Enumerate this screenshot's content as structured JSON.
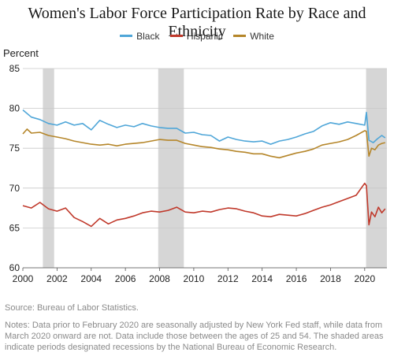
{
  "chart_data": {
    "type": "line",
    "title": "Women's Labor Force Participation Rate by Race and Ethnicity",
    "ylabel": "Percent",
    "xlabel": "",
    "xlim": [
      2000,
      2021.3
    ],
    "ylim": [
      60,
      85
    ],
    "x_ticks": [
      "2000",
      "2002",
      "2004",
      "2006",
      "2008",
      "2010",
      "2012",
      "2014",
      "2016",
      "2018",
      "2020"
    ],
    "y_ticks": [
      "60",
      "65",
      "70",
      "75",
      "80",
      "85"
    ],
    "grid": "horizontal",
    "legend_position": "top",
    "recessions": [
      [
        2001.17,
        2001.83
      ],
      [
        2007.92,
        2009.42
      ],
      [
        2020.08,
        2021.3
      ]
    ],
    "series": [
      {
        "name": "Black",
        "color": "#4fa6d8",
        "points": [
          [
            2000,
            79.8
          ],
          [
            2000.5,
            78.9
          ],
          [
            2001,
            78.6
          ],
          [
            2001.5,
            78.1
          ],
          [
            2002,
            77.9
          ],
          [
            2002.5,
            78.3
          ],
          [
            2003,
            77.9
          ],
          [
            2003.5,
            78.1
          ],
          [
            2004,
            77.3
          ],
          [
            2004.5,
            78.5
          ],
          [
            2005,
            78.0
          ],
          [
            2005.5,
            77.6
          ],
          [
            2006,
            77.9
          ],
          [
            2006.5,
            77.7
          ],
          [
            2007,
            78.1
          ],
          [
            2007.5,
            77.8
          ],
          [
            2008,
            77.6
          ],
          [
            2008.5,
            77.5
          ],
          [
            2009,
            77.5
          ],
          [
            2009.5,
            76.9
          ],
          [
            2010,
            77.0
          ],
          [
            2010.5,
            76.7
          ],
          [
            2011,
            76.6
          ],
          [
            2011.5,
            75.9
          ],
          [
            2012,
            76.4
          ],
          [
            2012.5,
            76.1
          ],
          [
            2013,
            75.9
          ],
          [
            2013.5,
            75.8
          ],
          [
            2014,
            75.9
          ],
          [
            2014.5,
            75.5
          ],
          [
            2015,
            75.9
          ],
          [
            2015.5,
            76.1
          ],
          [
            2016,
            76.4
          ],
          [
            2016.5,
            76.8
          ],
          [
            2017,
            77.1
          ],
          [
            2017.5,
            77.8
          ],
          [
            2018,
            78.2
          ],
          [
            2018.5,
            78.0
          ],
          [
            2019,
            78.3
          ],
          [
            2019.5,
            78.1
          ],
          [
            2020,
            77.9
          ],
          [
            2020.1,
            79.5
          ],
          [
            2020.25,
            76.0
          ],
          [
            2020.5,
            75.7
          ],
          [
            2020.75,
            76.2
          ],
          [
            2021,
            76.6
          ],
          [
            2021.2,
            76.3
          ]
        ]
      },
      {
        "name": "Hispanic",
        "color": "#c0392b",
        "points": [
          [
            2000,
            67.8
          ],
          [
            2000.5,
            67.5
          ],
          [
            2001,
            68.2
          ],
          [
            2001.5,
            67.4
          ],
          [
            2002,
            67.1
          ],
          [
            2002.5,
            67.5
          ],
          [
            2003,
            66.3
          ],
          [
            2003.5,
            65.8
          ],
          [
            2004,
            65.2
          ],
          [
            2004.5,
            66.2
          ],
          [
            2005,
            65.5
          ],
          [
            2005.5,
            66.0
          ],
          [
            2006,
            66.2
          ],
          [
            2006.5,
            66.5
          ],
          [
            2007,
            66.9
          ],
          [
            2007.5,
            67.1
          ],
          [
            2008,
            67.0
          ],
          [
            2008.5,
            67.2
          ],
          [
            2009,
            67.6
          ],
          [
            2009.5,
            67.0
          ],
          [
            2010,
            66.9
          ],
          [
            2010.5,
            67.1
          ],
          [
            2011,
            67.0
          ],
          [
            2011.5,
            67.3
          ],
          [
            2012,
            67.5
          ],
          [
            2012.5,
            67.4
          ],
          [
            2013,
            67.1
          ],
          [
            2013.5,
            66.9
          ],
          [
            2014,
            66.5
          ],
          [
            2014.5,
            66.4
          ],
          [
            2015,
            66.7
          ],
          [
            2015.5,
            66.6
          ],
          [
            2016,
            66.5
          ],
          [
            2016.5,
            66.8
          ],
          [
            2017,
            67.2
          ],
          [
            2017.5,
            67.6
          ],
          [
            2018,
            67.9
          ],
          [
            2018.5,
            68.3
          ],
          [
            2019,
            68.7
          ],
          [
            2019.5,
            69.1
          ],
          [
            2020,
            70.6
          ],
          [
            2020.1,
            70.3
          ],
          [
            2020.25,
            65.4
          ],
          [
            2020.4,
            67.0
          ],
          [
            2020.6,
            66.4
          ],
          [
            2020.8,
            67.6
          ],
          [
            2021,
            66.9
          ],
          [
            2021.2,
            67.4
          ]
        ]
      },
      {
        "name": "White",
        "color": "#b5862a",
        "points": [
          [
            2000,
            76.8
          ],
          [
            2000.25,
            77.4
          ],
          [
            2000.5,
            76.9
          ],
          [
            2001,
            77.0
          ],
          [
            2001.5,
            76.6
          ],
          [
            2002,
            76.4
          ],
          [
            2002.5,
            76.2
          ],
          [
            2003,
            75.9
          ],
          [
            2003.5,
            75.7
          ],
          [
            2004,
            75.5
          ],
          [
            2004.5,
            75.4
          ],
          [
            2005,
            75.5
          ],
          [
            2005.5,
            75.3
          ],
          [
            2006,
            75.5
          ],
          [
            2006.5,
            75.6
          ],
          [
            2007,
            75.7
          ],
          [
            2007.5,
            75.9
          ],
          [
            2008,
            76.1
          ],
          [
            2008.5,
            76.0
          ],
          [
            2009,
            76.0
          ],
          [
            2009.5,
            75.6
          ],
          [
            2010,
            75.4
          ],
          [
            2010.5,
            75.2
          ],
          [
            2011,
            75.1
          ],
          [
            2011.5,
            74.9
          ],
          [
            2012,
            74.8
          ],
          [
            2012.5,
            74.6
          ],
          [
            2013,
            74.5
          ],
          [
            2013.5,
            74.3
          ],
          [
            2014,
            74.3
          ],
          [
            2014.5,
            74.0
          ],
          [
            2015,
            73.8
          ],
          [
            2015.5,
            74.1
          ],
          [
            2016,
            74.4
          ],
          [
            2016.5,
            74.6
          ],
          [
            2017,
            74.9
          ],
          [
            2017.5,
            75.4
          ],
          [
            2018,
            75.6
          ],
          [
            2018.5,
            75.8
          ],
          [
            2019,
            76.1
          ],
          [
            2019.5,
            76.6
          ],
          [
            2020,
            77.2
          ],
          [
            2020.1,
            77.1
          ],
          [
            2020.25,
            74.0
          ],
          [
            2020.4,
            75.0
          ],
          [
            2020.6,
            74.8
          ],
          [
            2020.8,
            75.4
          ],
          [
            2021,
            75.6
          ],
          [
            2021.2,
            75.7
          ]
        ]
      }
    ]
  },
  "footer": {
    "source": "Source: Bureau of Labor Statistics.",
    "notes": "Notes: Data prior to February 2020 are seasonally adjusted by New York Fed staff, while data from March 2020 onward are not. Data include those between the ages of 25 and 54. The shaded areas indicate periods designated recessions by the National Bureau of Economic Research."
  }
}
